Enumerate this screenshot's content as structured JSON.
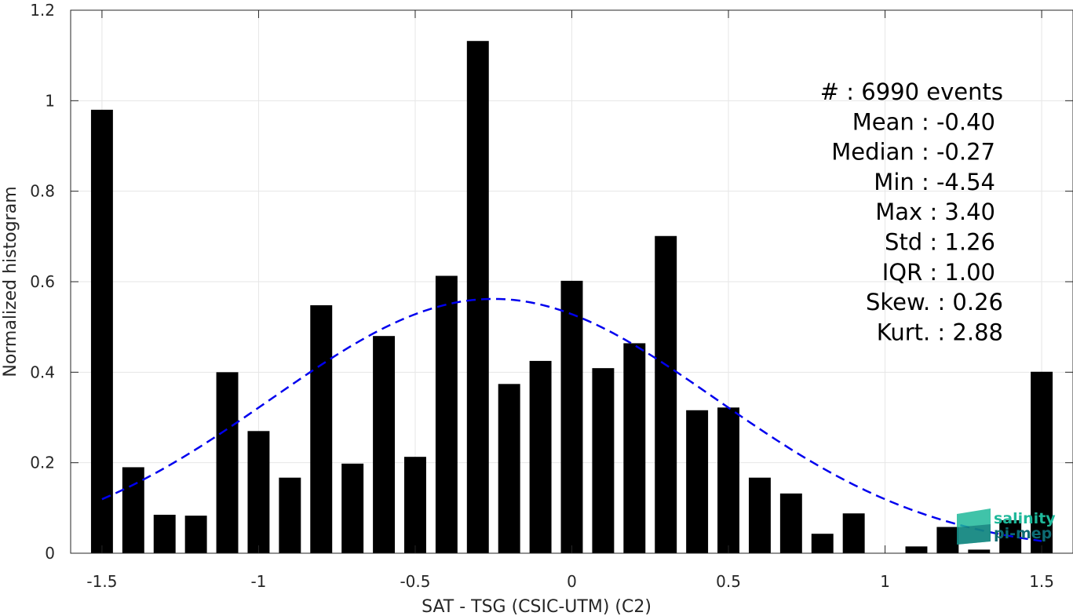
{
  "chart_data": {
    "type": "bar",
    "xlabel": "SAT - TSG (CSIC-UTM) (C2)",
    "ylabel": "Normalized histogram",
    "xlim": [
      -1.6,
      1.6
    ],
    "ylim": [
      0,
      1.2
    ],
    "x_ticks": [
      "-1.5",
      "-1",
      "-0.5",
      "0",
      "0.5",
      "1",
      "1.5"
    ],
    "x_tick_values": [
      -1.5,
      -1,
      -0.5,
      0,
      0.5,
      1,
      1.5
    ],
    "y_ticks": [
      "0",
      "0.2",
      "0.4",
      "0.6",
      "0.8",
      "1",
      "1.2"
    ],
    "y_tick_values": [
      0,
      0.2,
      0.4,
      0.6,
      0.8,
      1,
      1.2
    ],
    "grid": true,
    "bar_color": "#000000",
    "fit_color": "#0000ee",
    "bars": {
      "x": [
        -1.5,
        -1.4,
        -1.3,
        -1.2,
        -1.1,
        -1.0,
        -0.9,
        -0.8,
        -0.7,
        -0.6,
        -0.5,
        -0.4,
        -0.3,
        -0.2,
        -0.1,
        0.0,
        0.1,
        0.2,
        0.3,
        0.4,
        0.5,
        0.6,
        0.7,
        0.8,
        0.9,
        1.0,
        1.1,
        1.2,
        1.3,
        1.4,
        1.5
      ],
      "values": [
        0.98,
        0.19,
        0.085,
        0.083,
        0.4,
        0.27,
        0.167,
        0.548,
        0.198,
        0.48,
        0.213,
        0.613,
        1.132,
        0.374,
        0.425,
        0.602,
        0.409,
        0.464,
        0.701,
        0.316,
        0.322,
        0.167,
        0.132,
        0.043,
        0.088,
        0.0,
        0.015,
        0.058,
        0.008,
        0.073,
        0.401
      ]
    },
    "fit": {
      "type": "normal",
      "mean": -0.25,
      "std": 0.71,
      "peak": 0.562,
      "x_range": [
        -1.5,
        1.5
      ],
      "style": "dashed"
    },
    "stats_lines": [
      "#  : 6990 events",
      "Mean : -0.40",
      "Median : -0.27",
      "Min : -4.54",
      "Max : 3.40",
      "Std : 1.26",
      "IQR : 1.00",
      "Skew. : 0.26",
      "Kurt. : 2.88"
    ]
  },
  "logo": {
    "line1": "salinity",
    "line2": "pi-mep",
    "color_line1": "#1fb89a",
    "color_line2": "#0d6b73"
  }
}
